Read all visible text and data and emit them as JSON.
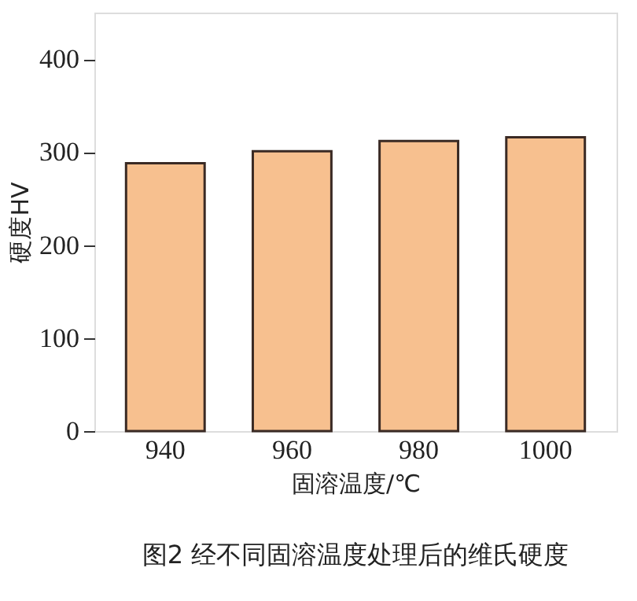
{
  "chart_data": {
    "type": "bar",
    "title": "图2  经不同固溶温度处理后的维氏硬度",
    "xlabel": "固溶温度/℃",
    "ylabel": "硬度HV",
    "categories": [
      "940",
      "960",
      "980",
      "1000"
    ],
    "values": [
      288,
      301,
      312,
      316
    ],
    "color": "#f7c08f",
    "ylim": [
      0,
      450
    ],
    "yticks": [
      0,
      100,
      200,
      300,
      400
    ],
    "grid": false
  }
}
